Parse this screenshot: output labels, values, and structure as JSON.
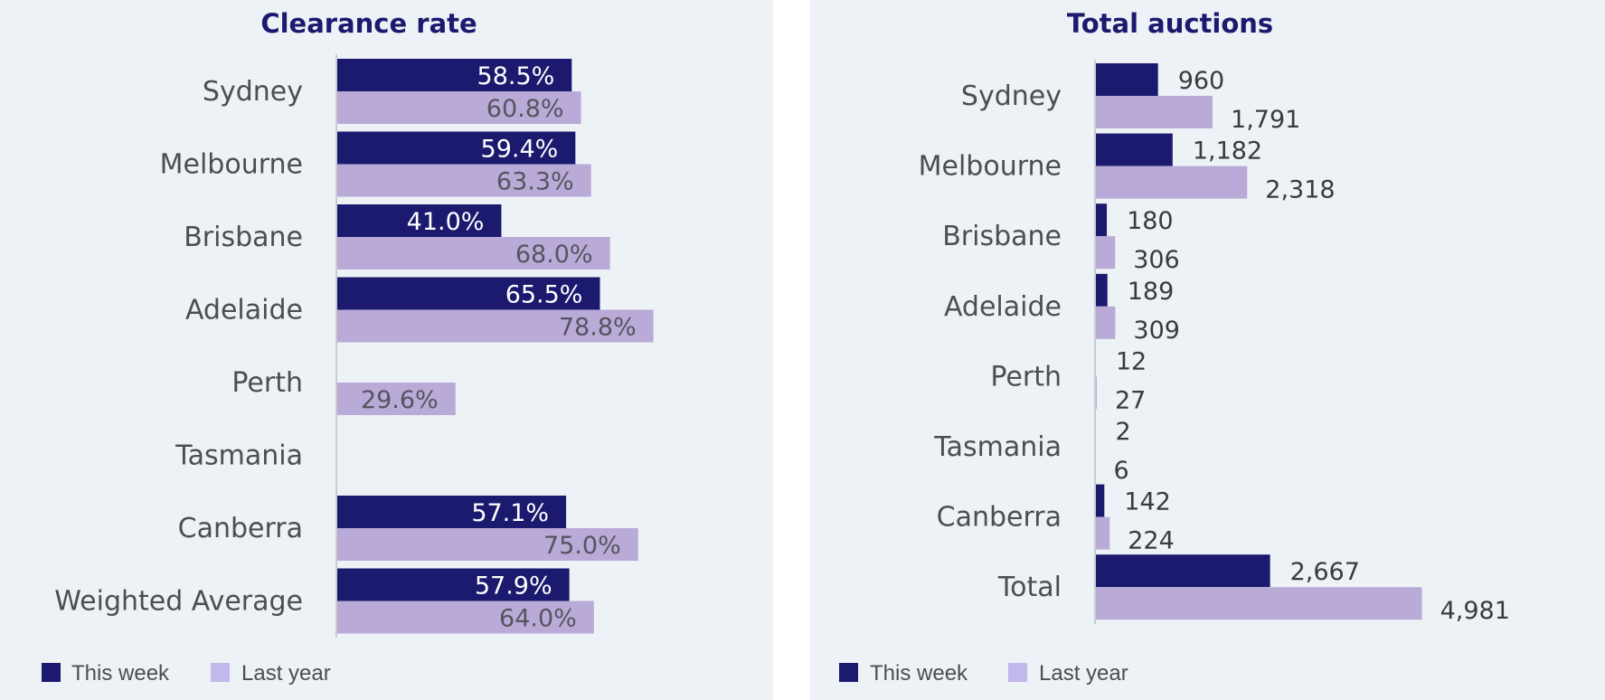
{
  "colors": {
    "this_week": "#1b1a6e",
    "last_year": "#baaad7",
    "legend_last_year": "#c3b8eb",
    "axis": "#c8ccd2"
  },
  "legend": {
    "this_week": "This week",
    "last_year": "Last year"
  },
  "chart_data": [
    {
      "type": "bar",
      "orientation": "horizontal",
      "title": "Clearance rate",
      "categories": [
        "Sydney",
        "Melbourne",
        "Brisbane",
        "Adelaide",
        "Perth",
        "Tasmania",
        "Canberra",
        "Weighted Average"
      ],
      "series": [
        {
          "name": "This week",
          "values": [
            58.5,
            59.4,
            41.0,
            65.5,
            null,
            null,
            57.1,
            57.9
          ],
          "labels": [
            "58.5%",
            "59.4%",
            "41.0%",
            "65.5%",
            "",
            "",
            "57.1%",
            "57.9%"
          ]
        },
        {
          "name": "Last year",
          "values": [
            60.8,
            63.3,
            68.0,
            78.8,
            29.6,
            null,
            75.0,
            64.0
          ],
          "labels": [
            "60.8%",
            "63.3%",
            "68.0%",
            "78.8%",
            "29.6%",
            "",
            "75.0%",
            "64.0%"
          ]
        }
      ],
      "xlim": [
        0,
        100
      ],
      "grid": false,
      "legend_position": "bottom-left"
    },
    {
      "type": "bar",
      "orientation": "horizontal",
      "title": "Total auctions",
      "categories": [
        "Sydney",
        "Melbourne",
        "Brisbane",
        "Adelaide",
        "Perth",
        "Tasmania",
        "Canberra",
        "Total"
      ],
      "series": [
        {
          "name": "This week",
          "values": [
            960,
            1182,
            180,
            189,
            12,
            2,
            142,
            2667
          ],
          "labels": [
            "960",
            "1,182",
            "180",
            "189",
            "12",
            "2",
            "142",
            "2,667"
          ]
        },
        {
          "name": "Last year",
          "values": [
            1791,
            2318,
            306,
            309,
            27,
            6,
            224,
            4981
          ],
          "labels": [
            "1,791",
            "2,318",
            "306",
            "309",
            "27",
            "6",
            "224",
            "4,981"
          ]
        }
      ],
      "xlim": [
        0,
        5000
      ],
      "grid": false,
      "legend_position": "bottom-left"
    }
  ]
}
